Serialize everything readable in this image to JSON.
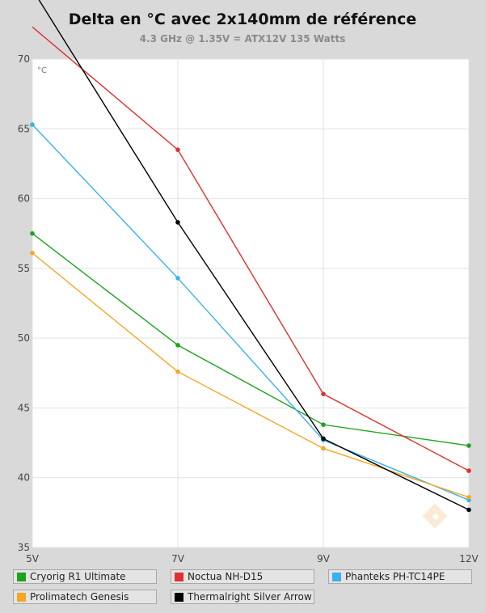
{
  "chart_data": {
    "type": "line",
    "title": "Delta en °C avec 2x140mm de référence",
    "subtitle": "4.3 GHz @ 1.35V = ATX12V 135 Watts",
    "unit_label": "°C",
    "categories": [
      "5V",
      "7V",
      "9V",
      "12V"
    ],
    "ylim": [
      35,
      70
    ],
    "yticks": [
      35,
      40,
      45,
      50,
      55,
      60,
      65,
      70
    ],
    "grid": true,
    "legend_position": "bottom",
    "series": [
      {
        "name": "Cryorig R1 Ultimate",
        "color": "#1ea31e",
        "values": [
          57.5,
          49.5,
          43.8,
          42.3
        ]
      },
      {
        "name": "Noctua NH-D15",
        "color": "#e03030",
        "values": [
          72.3,
          63.5,
          46.0,
          40.5
        ]
      },
      {
        "name": "Phanteks PH-TC14PE",
        "color": "#3ab0f0",
        "values": [
          65.3,
          54.3,
          42.7,
          38.4
        ]
      },
      {
        "name": "Prolimatech Genesis",
        "color": "#f5a623",
        "values": [
          56.1,
          47.6,
          42.1,
          38.6
        ]
      },
      {
        "name": "Thermalright Silver Arrow",
        "color": "#000000",
        "values": [
          75.0,
          58.3,
          42.8,
          37.7
        ]
      }
    ]
  }
}
